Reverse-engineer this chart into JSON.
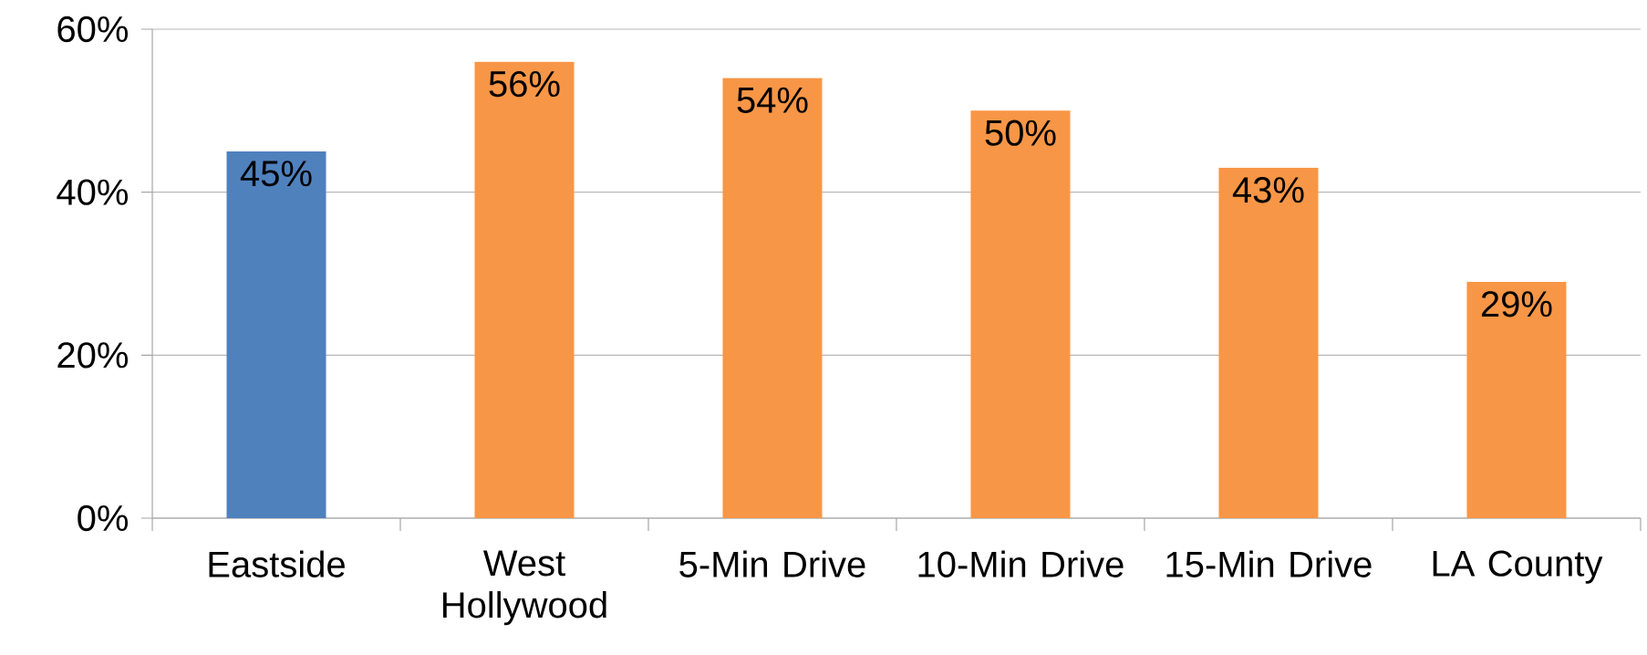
{
  "chart_data": {
    "type": "bar",
    "categories": [
      "Eastside",
      "West Hollywood",
      "5-Min Drive",
      "10-Min Drive",
      "15-Min Drive",
      "LA County"
    ],
    "values": [
      45,
      56,
      54,
      50,
      43,
      29
    ],
    "colors": [
      "#4f81bd",
      "#f79646",
      "#f79646",
      "#f79646",
      "#f79646",
      "#f79646"
    ],
    "value_labels": [
      "45%",
      "56%",
      "54%",
      "50%",
      "43%",
      "29%"
    ],
    "ylim": [
      0,
      60
    ],
    "yticks": [
      {
        "value": 0,
        "label": "0%"
      },
      {
        "value": 20,
        "label": "20%"
      },
      {
        "value": 40,
        "label": "40%"
      },
      {
        "value": 60,
        "label": "60%"
      }
    ],
    "grid": "y"
  }
}
